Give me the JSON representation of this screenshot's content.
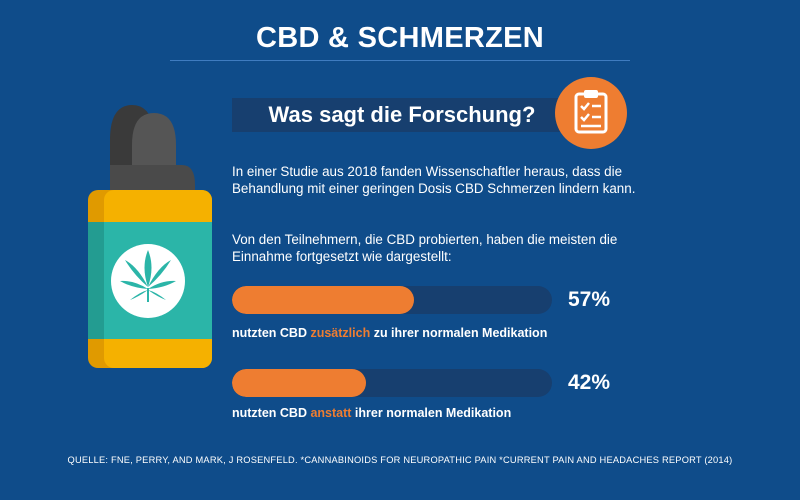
{
  "title": "CBD & SCHMERZEN",
  "question": "Was sagt die Forschung?",
  "paragraph1": "In einer Studie aus 2018 fanden Wissenschaftler heraus, dass die Behandlung mit einer geringen Dosis CBD Schmerzen lindern kann.",
  "paragraph2": "Von den Teilnehmern, die CBD probierten, haben die meisten die Einnahme fortgesetzt wie dargestellt:",
  "stats": [
    {
      "value": 57,
      "percent_label": "57%",
      "caption_before": "nutzten CBD ",
      "caption_highlight": "zusätzlich",
      "caption_after": " zu ihrer normalen Medikation"
    },
    {
      "value": 42,
      "percent_label": "42%",
      "caption_before": "nutzten CBD ",
      "caption_highlight": "anstatt",
      "caption_after": " ihrer normalen Medikation"
    }
  ],
  "source": "QUELLE: FNE, PERRY, AND MARK, J ROSENFELD. *CANNABINOIDS FOR NEUROPATHIC PAIN *CURRENT PAIN AND HEADACHES REPORT (2014)",
  "colors": {
    "background": "#0f4c8a",
    "accent": "#ee7d31",
    "track": "#173f6f",
    "bottle_body": "#f5b100",
    "bottle_label": "#2bb5a8",
    "bottle_cap": "#4a4a4a"
  },
  "icons": {
    "clipboard": "clipboard-checklist-icon",
    "bottle": "cbd-oil-bottle-icon",
    "leaf": "cannabis-leaf-icon"
  }
}
